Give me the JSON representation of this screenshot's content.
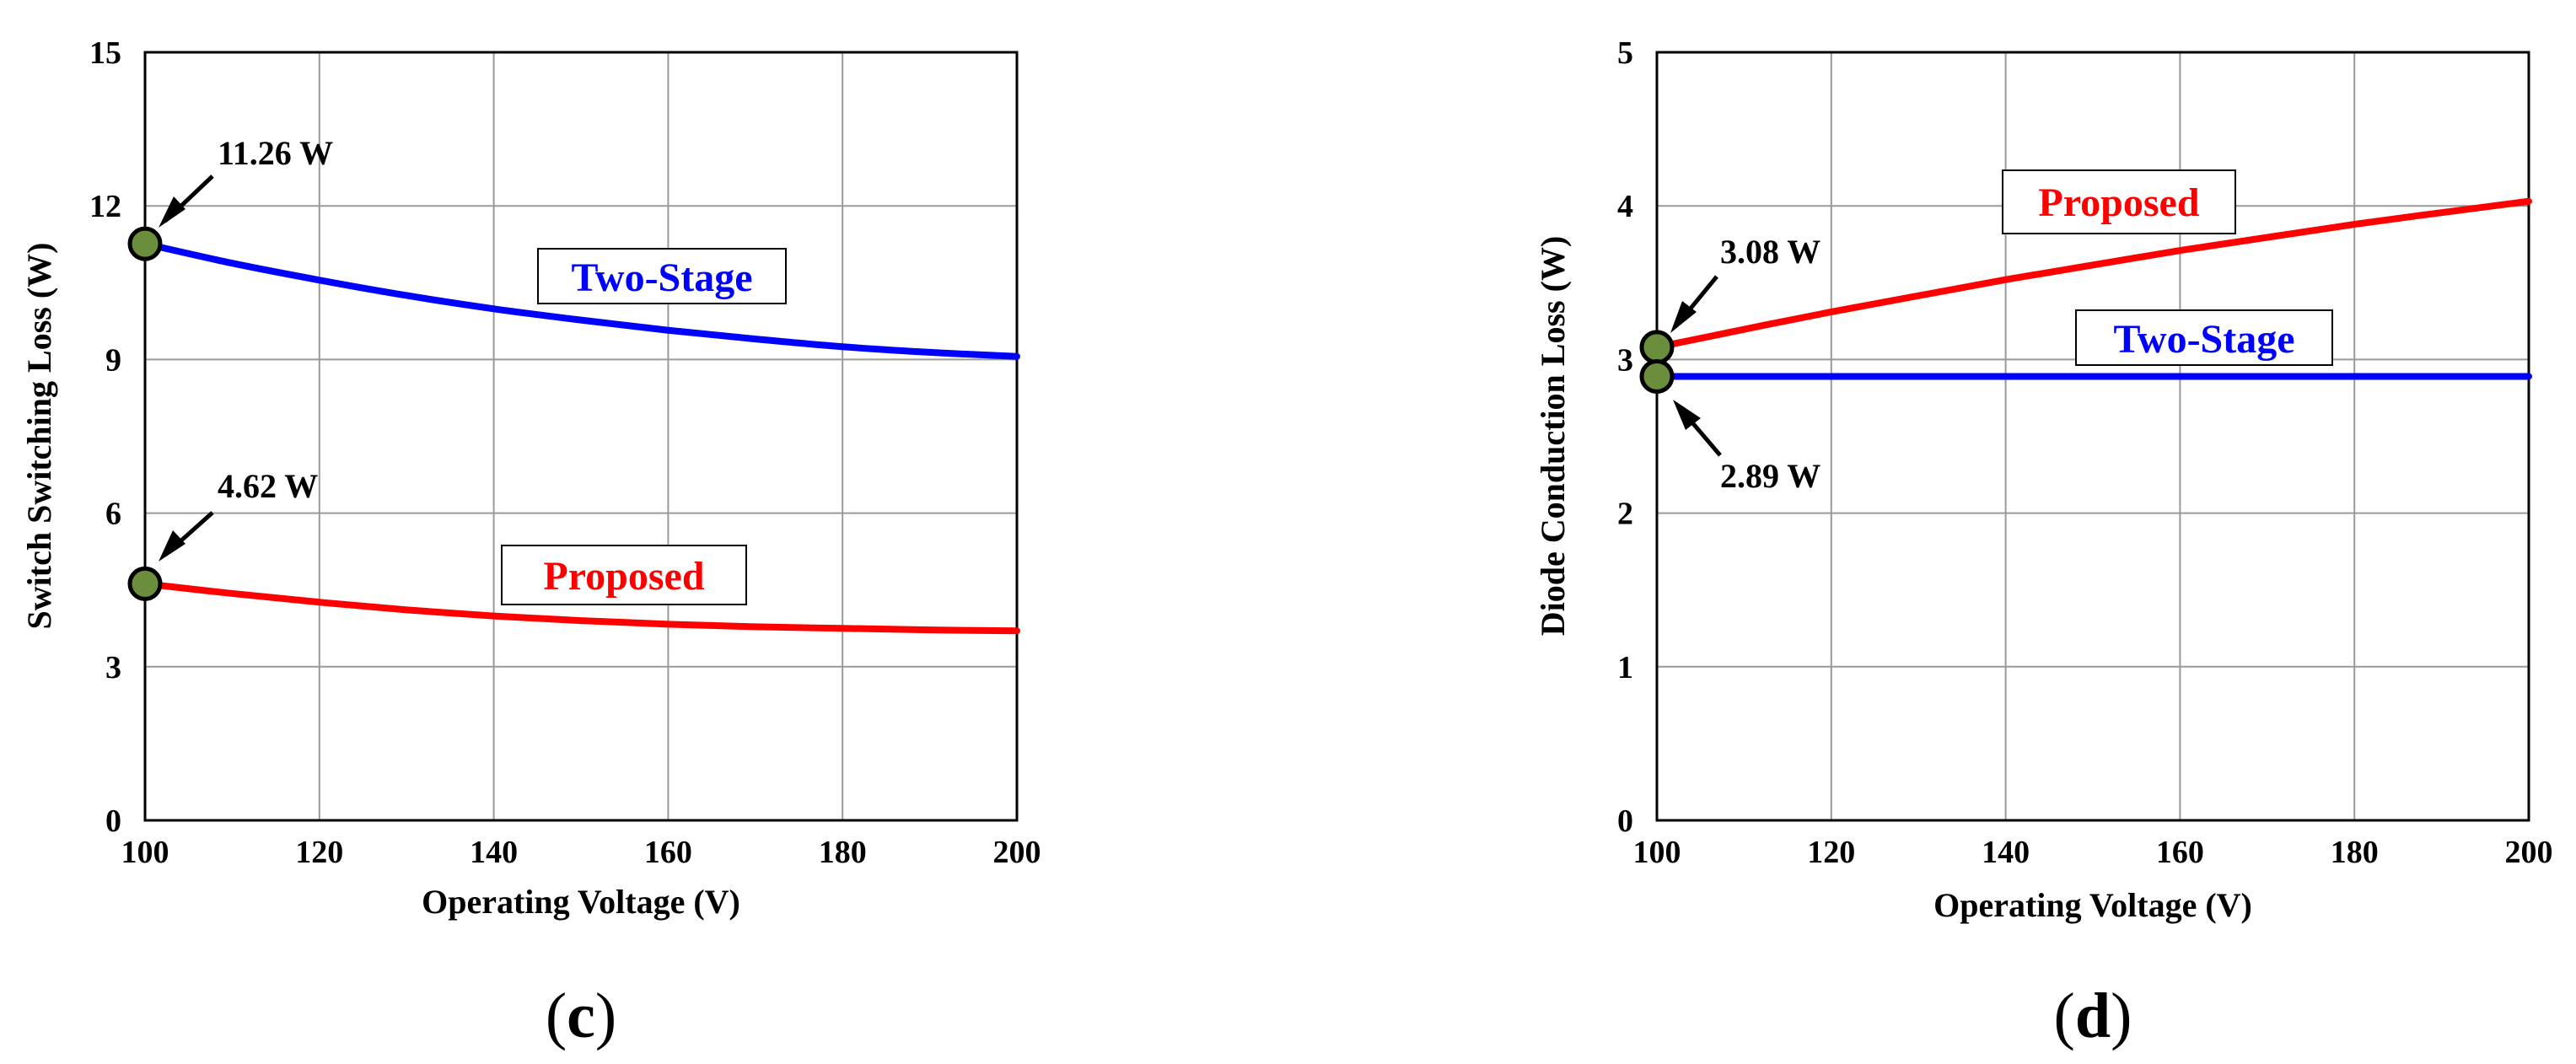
{
  "chart_data": [
    {
      "id": "c",
      "type": "line",
      "panel_label": {
        "open": "(",
        "letter": "c",
        "close": ")"
      },
      "xlabel": "Operating Voltage (V)",
      "ylabel": "Switch Switching Loss (W)",
      "xlim": [
        100,
        200
      ],
      "ylim": [
        0,
        15
      ],
      "xticks": [
        100,
        120,
        140,
        160,
        180,
        200
      ],
      "yticks": [
        0,
        3,
        6,
        9,
        12,
        15
      ],
      "grid": true,
      "series": [
        {
          "name": "Two-Stage",
          "label": "Two-Stage",
          "color": "#0000ff",
          "x": [
            100,
            110,
            120,
            130,
            140,
            150,
            160,
            170,
            180,
            190,
            200
          ],
          "y": [
            11.26,
            10.88,
            10.55,
            10.25,
            9.99,
            9.77,
            9.57,
            9.4,
            9.25,
            9.14,
            9.06
          ]
        },
        {
          "name": "Proposed",
          "label": "Proposed",
          "color": "#ff0000",
          "x": [
            100,
            110,
            120,
            130,
            140,
            150,
            160,
            170,
            180,
            190,
            200
          ],
          "y": [
            4.62,
            4.43,
            4.26,
            4.11,
            3.99,
            3.9,
            3.83,
            3.78,
            3.75,
            3.72,
            3.7
          ]
        }
      ],
      "annotations": [
        {
          "text": "11.26 W",
          "x": 100,
          "y": 11.26
        },
        {
          "text": "4.62 W",
          "x": 100,
          "y": 4.62
        }
      ],
      "marker_color": "#6b8e3d"
    },
    {
      "id": "d",
      "type": "line",
      "panel_label": {
        "open": "(",
        "letter": "d",
        "close": ")"
      },
      "xlabel": "Operating Voltage (V)",
      "ylabel": "Diode Conduction Loss (W)",
      "xlim": [
        100,
        200
      ],
      "ylim": [
        0,
        5
      ],
      "xticks": [
        100,
        120,
        140,
        160,
        180,
        200
      ],
      "yticks": [
        0,
        1,
        2,
        3,
        4,
        5
      ],
      "grid": true,
      "series": [
        {
          "name": "Proposed",
          "label": "Proposed",
          "color": "#ff0000",
          "x": [
            100,
            120,
            140,
            160,
            180,
            200
          ],
          "y": [
            3.08,
            3.31,
            3.52,
            3.71,
            3.88,
            4.03
          ]
        },
        {
          "name": "Two-Stage",
          "label": "Two-Stage",
          "color": "#0000ff",
          "x": [
            100,
            120,
            140,
            160,
            180,
            200
          ],
          "y": [
            2.89,
            2.89,
            2.89,
            2.89,
            2.89,
            2.89
          ]
        }
      ],
      "annotations": [
        {
          "text": "3.08 W",
          "x": 100,
          "y": 3.08
        },
        {
          "text": "2.89 W",
          "x": 100,
          "y": 2.89
        }
      ],
      "marker_color": "#6b8e3d"
    }
  ]
}
